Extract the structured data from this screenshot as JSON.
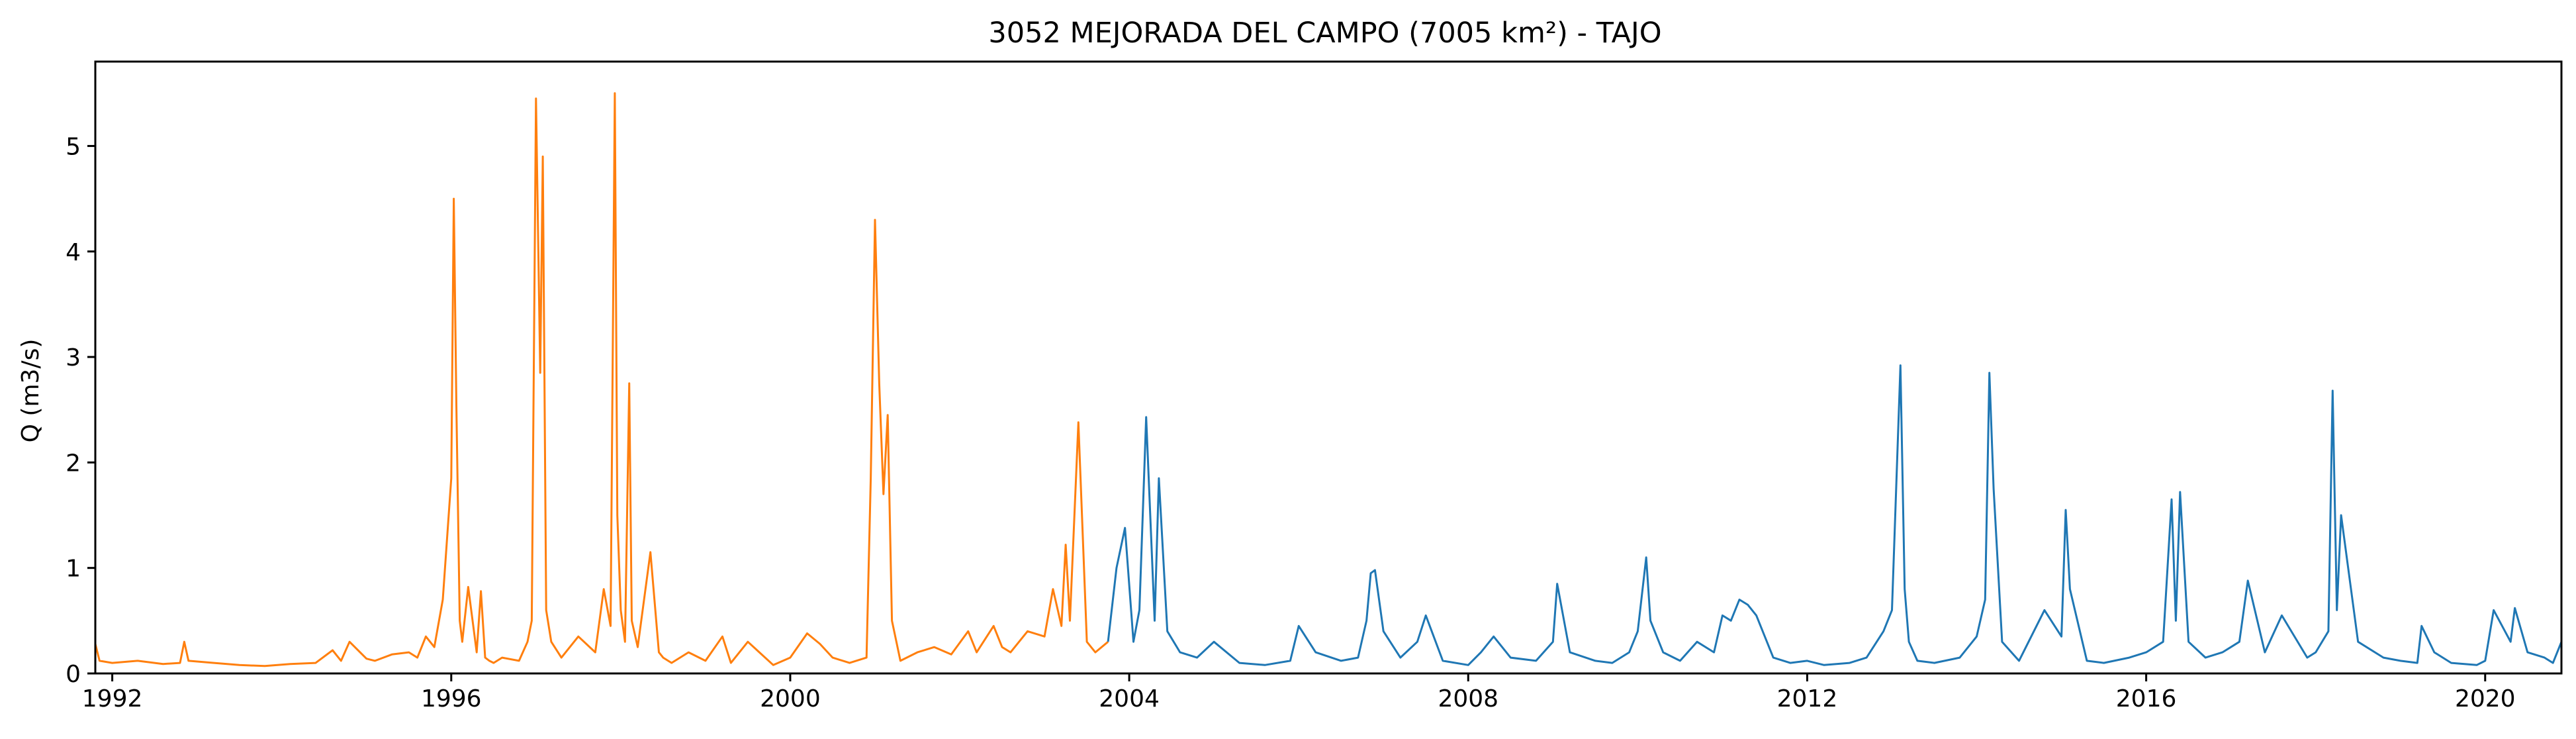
{
  "chart_data": {
    "type": "line",
    "title": "3052 MEJORADA DEL CAMPO (7005 km²) - TAJO",
    "xlabel": "",
    "ylabel": "Q (m3/s)",
    "xlim": [
      1991.8,
      2020.9
    ],
    "ylim": [
      0,
      5.8
    ],
    "x_ticks": [
      1992,
      1996,
      2000,
      2004,
      2008,
      2012,
      2016,
      2020
    ],
    "y_ticks": [
      0,
      1,
      2,
      3,
      4,
      5
    ],
    "grid": false,
    "legend": "none",
    "series": [
      {
        "color": "#ff7f0e",
        "x": [
          1991.8,
          1991.85,
          1992.0,
          1992.3,
          1992.6,
          1992.8,
          1992.85,
          1992.9,
          1993.2,
          1993.5,
          1993.8,
          1994.1,
          1994.4,
          1994.6,
          1994.7,
          1994.8,
          1995.0,
          1995.1,
          1995.3,
          1995.5,
          1995.6,
          1995.7,
          1995.8,
          1995.9,
          1996.0,
          1996.03,
          1996.06,
          1996.1,
          1996.13,
          1996.2,
          1996.3,
          1996.35,
          1996.4,
          1996.45,
          1996.5,
          1996.6,
          1996.8,
          1996.9,
          1996.95,
          1997.0,
          1997.05,
          1997.08,
          1997.12,
          1997.18,
          1997.3,
          1997.5,
          1997.7,
          1997.8,
          1997.88,
          1997.93,
          1997.96,
          1998.0,
          1998.05,
          1998.1,
          1998.13,
          1998.2,
          1998.35,
          1998.45,
          1998.5,
          1998.6,
          1998.8,
          1999.0,
          1999.2,
          1999.3,
          1999.5,
          1999.8,
          2000.0,
          2000.2,
          2000.35,
          2000.5,
          2000.7,
          2000.9,
          2000.95,
          2001.0,
          2001.05,
          2001.1,
          2001.15,
          2001.2,
          2001.3,
          2001.5,
          2001.7,
          2001.9,
          2002.1,
          2002.2,
          2002.4,
          2002.5,
          2002.6,
          2002.8,
          2003.0,
          2003.1,
          2003.2,
          2003.25,
          2003.3,
          2003.4,
          2003.5,
          2003.6,
          2003.75
        ],
        "y": [
          0.28,
          0.12,
          0.1,
          0.12,
          0.09,
          0.1,
          0.3,
          0.12,
          0.1,
          0.08,
          0.07,
          0.09,
          0.1,
          0.22,
          0.12,
          0.3,
          0.14,
          0.12,
          0.18,
          0.2,
          0.15,
          0.35,
          0.25,
          0.7,
          1.85,
          4.5,
          2.55,
          0.5,
          0.3,
          0.82,
          0.2,
          0.78,
          0.15,
          0.12,
          0.1,
          0.15,
          0.12,
          0.3,
          0.5,
          5.45,
          2.85,
          4.9,
          0.6,
          0.3,
          0.15,
          0.35,
          0.2,
          0.8,
          0.45,
          5.5,
          1.5,
          0.6,
          0.3,
          2.75,
          0.5,
          0.25,
          1.15,
          0.2,
          0.15,
          0.1,
          0.2,
          0.12,
          0.35,
          0.1,
          0.3,
          0.08,
          0.15,
          0.38,
          0.28,
          0.15,
          0.1,
          0.15,
          1.85,
          4.3,
          2.75,
          1.7,
          2.45,
          0.5,
          0.12,
          0.2,
          0.25,
          0.18,
          0.4,
          0.2,
          0.45,
          0.25,
          0.2,
          0.4,
          0.35,
          0.8,
          0.45,
          1.22,
          0.5,
          2.38,
          0.3,
          0.2,
          0.3
        ]
      },
      {
        "color": "#1f77b4",
        "x": [
          2003.75,
          2003.85,
          2003.95,
          2004.05,
          2004.12,
          2004.2,
          2004.3,
          2004.35,
          2004.45,
          2004.6,
          2004.8,
          2005.0,
          2005.3,
          2005.6,
          2005.9,
          2006.0,
          2006.2,
          2006.5,
          2006.7,
          2006.8,
          2006.85,
          2006.9,
          2007.0,
          2007.2,
          2007.4,
          2007.5,
          2007.7,
          2008.0,
          2008.15,
          2008.3,
          2008.5,
          2008.8,
          2009.0,
          2009.05,
          2009.2,
          2009.5,
          2009.7,
          2009.9,
          2010.0,
          2010.1,
          2010.15,
          2010.3,
          2010.5,
          2010.7,
          2010.9,
          2011.0,
          2011.1,
          2011.2,
          2011.3,
          2011.4,
          2011.6,
          2011.8,
          2012.0,
          2012.2,
          2012.5,
          2012.7,
          2012.9,
          2013.0,
          2013.1,
          2013.15,
          2013.2,
          2013.3,
          2013.5,
          2013.8,
          2014.0,
          2014.1,
          2014.15,
          2014.2,
          2014.3,
          2014.5,
          2014.8,
          2015.0,
          2015.05,
          2015.1,
          2015.3,
          2015.5,
          2015.8,
          2016.0,
          2016.2,
          2016.3,
          2016.35,
          2016.4,
          2016.5,
          2016.7,
          2016.9,
          2017.0,
          2017.1,
          2017.2,
          2017.4,
          2017.6,
          2017.9,
          2018.0,
          2018.15,
          2018.2,
          2018.25,
          2018.3,
          2018.5,
          2018.8,
          2019.0,
          2019.2,
          2019.25,
          2019.4,
          2019.6,
          2019.9,
          2020.0,
          2020.1,
          2020.3,
          2020.35,
          2020.5,
          2020.7,
          2020.8,
          2020.9
        ],
        "y": [
          0.3,
          1.0,
          1.38,
          0.3,
          0.6,
          2.43,
          0.5,
          1.85,
          0.4,
          0.2,
          0.15,
          0.3,
          0.1,
          0.08,
          0.12,
          0.45,
          0.2,
          0.12,
          0.15,
          0.5,
          0.95,
          0.98,
          0.4,
          0.15,
          0.3,
          0.55,
          0.12,
          0.08,
          0.2,
          0.35,
          0.15,
          0.12,
          0.3,
          0.85,
          0.2,
          0.12,
          0.1,
          0.2,
          0.4,
          1.1,
          0.5,
          0.2,
          0.12,
          0.3,
          0.2,
          0.55,
          0.5,
          0.7,
          0.65,
          0.55,
          0.15,
          0.1,
          0.12,
          0.08,
          0.1,
          0.15,
          0.4,
          0.6,
          2.92,
          0.8,
          0.3,
          0.12,
          0.1,
          0.15,
          0.35,
          0.7,
          2.85,
          1.75,
          0.3,
          0.12,
          0.6,
          0.35,
          1.55,
          0.8,
          0.12,
          0.1,
          0.15,
          0.2,
          0.3,
          1.65,
          0.5,
          1.72,
          0.3,
          0.15,
          0.2,
          0.25,
          0.3,
          0.88,
          0.2,
          0.55,
          0.15,
          0.2,
          0.4,
          2.68,
          0.6,
          1.5,
          0.3,
          0.15,
          0.12,
          0.1,
          0.45,
          0.2,
          0.1,
          0.08,
          0.12,
          0.6,
          0.3,
          0.62,
          0.2,
          0.15,
          0.1,
          0.3
        ]
      }
    ]
  }
}
